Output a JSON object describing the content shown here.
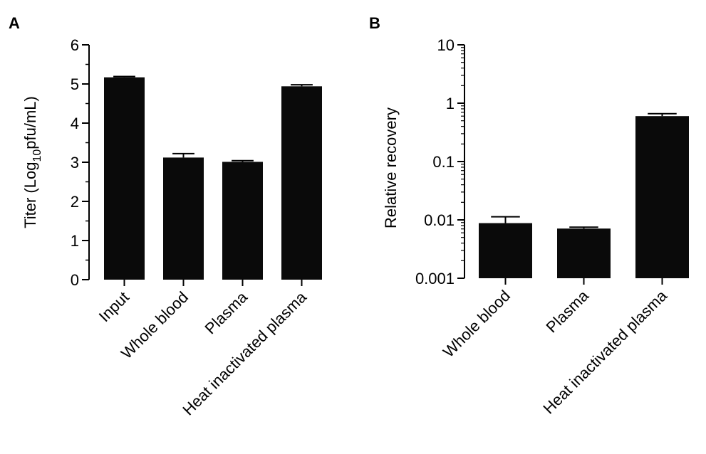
{
  "chart_data": [
    {
      "panel": "A",
      "type": "bar",
      "categories": [
        "Input",
        "Whole blood",
        "Plasma",
        "Heat inactivated plasma"
      ],
      "values": [
        5.17,
        3.12,
        3.01,
        4.94
      ],
      "errors": [
        0.02,
        0.1,
        0.03,
        0.04
      ],
      "ylabel": "Titer (Log10pfu/mL)",
      "ylabel_parts": {
        "pre": "Titer (Log",
        "sub": "10",
        "post": "pfu/mL)"
      },
      "ylim": [
        0,
        6
      ],
      "yticks": [
        0,
        1,
        2,
        3,
        4,
        5,
        6
      ],
      "ytick_labels": [
        "0",
        "1",
        "2",
        "3",
        "4",
        "5",
        "6"
      ],
      "bar_color": "#0a0a0a"
    },
    {
      "panel": "B",
      "type": "bar",
      "scale": "log",
      "categories": [
        "Whole blood",
        "Plasma",
        "Heat inactivated plasma"
      ],
      "values": [
        0.0088,
        0.0071,
        0.6
      ],
      "errors": [
        0.0025,
        0.0004,
        0.06
      ],
      "ylabel": "Relative recovery",
      "ylim": [
        0.001,
        10
      ],
      "yticks": [
        0.001,
        0.01,
        0.1,
        1,
        10
      ],
      "ytick_labels": [
        "0.001",
        "0.01",
        "0.1",
        "1",
        "10"
      ],
      "bar_color": "#0a0a0a"
    }
  ]
}
